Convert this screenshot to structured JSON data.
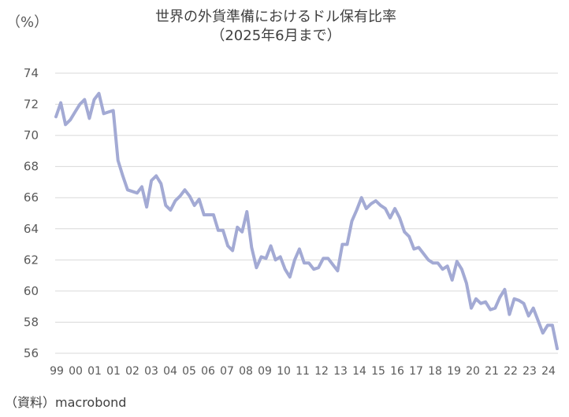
{
  "header": {
    "unit_label": "（%）",
    "title_line1": "世界の外貨準備におけるドル保有比率",
    "title_line2": "（2025年6月まで）"
  },
  "footer": {
    "source": "（資料）macrobond"
  },
  "colors": {
    "line": "#a3aad4",
    "grid": "#d9d9d9",
    "text": "#595959"
  },
  "chart_data": {
    "type": "line",
    "title": "世界の外貨準備におけるドル保有比率",
    "subtitle": "（2025年6月まで）",
    "ylabel": "（%）",
    "xlabel": "",
    "ylim": [
      56,
      74
    ],
    "yticks": [
      56,
      58,
      60,
      62,
      64,
      66,
      68,
      70,
      72,
      74
    ],
    "grid": "horizontal",
    "xtick_labels": [
      "99",
      "00",
      "01",
      "01",
      "02",
      "03",
      "04",
      "05",
      "06",
      "07",
      "08",
      "09",
      "10",
      "11",
      "12",
      "13",
      "14",
      "15",
      "16",
      "17",
      "18",
      "19",
      "20",
      "21",
      "22",
      "23",
      "24"
    ],
    "x_start": "1999-Q1",
    "frequency": "quarterly",
    "series": [
      {
        "values": [
          71.2,
          72.1,
          70.7,
          71.0,
          71.5,
          72.0,
          72.3,
          71.1,
          72.3,
          72.7,
          71.4,
          71.5,
          71.6,
          68.4,
          67.4,
          66.5,
          66.4,
          66.3,
          66.7,
          65.4,
          67.1,
          67.4,
          66.9,
          65.5,
          65.2,
          65.8,
          66.1,
          66.5,
          66.1,
          65.5,
          65.9,
          64.9,
          64.9,
          64.9,
          63.9,
          63.9,
          62.9,
          62.6,
          64.1,
          63.8,
          65.1,
          62.8,
          61.5,
          62.2,
          62.1,
          62.9,
          62.0,
          62.2,
          61.4,
          60.9,
          62.0,
          62.7,
          61.8,
          61.8,
          61.4,
          61.5,
          62.1,
          62.1,
          61.7,
          61.3,
          63.0,
          63.0,
          64.5,
          65.2,
          66.0,
          65.3,
          65.6,
          65.8,
          65.5,
          65.3,
          64.7,
          65.3,
          64.7,
          63.8,
          63.5,
          62.7,
          62.8,
          62.4,
          62.0,
          61.8,
          61.8,
          61.4,
          61.6,
          60.7,
          61.9,
          61.4,
          60.5,
          58.9,
          59.5,
          59.2,
          59.3,
          58.8,
          58.9,
          59.6,
          60.1,
          58.5,
          59.5,
          59.4,
          59.2,
          58.4,
          58.9,
          58.1,
          57.3,
          57.8,
          57.8,
          56.3
        ]
      }
    ]
  }
}
